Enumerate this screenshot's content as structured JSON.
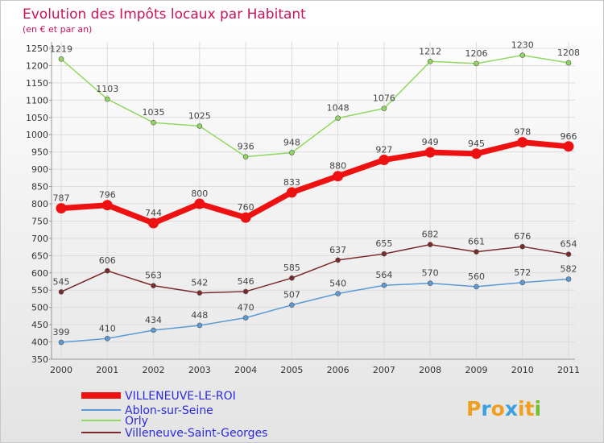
{
  "title": "Evolution des Impôts locaux par Habitant",
  "subtitle": "(en € et par an)",
  "logo": {
    "letters": [
      "P",
      "r",
      "o",
      "x",
      "i",
      "t",
      "i"
    ],
    "colors": [
      "#f0a020",
      "#3aa0e0",
      "#f0a020",
      "#3aa0e0",
      "#f0a020",
      "#f0a020",
      "#70c030"
    ]
  },
  "colors": {
    "title": "#c8145a",
    "grid": "#dcdcdc",
    "legend_text": "#2a2ae0"
  },
  "chart_data": {
    "type": "line",
    "title": "Evolution des Impôts locaux par Habitant",
    "subtitle": "(en € et par an)",
    "xlabel": "",
    "ylabel": "",
    "x": [
      "2000",
      "2001",
      "2002",
      "2003",
      "2004",
      "2005",
      "2006",
      "2007",
      "2008",
      "2009",
      "2010",
      "2011"
    ],
    "ylim": [
      350,
      1250
    ],
    "yticks": [
      350,
      400,
      450,
      500,
      550,
      600,
      650,
      700,
      750,
      800,
      850,
      900,
      950,
      1000,
      1050,
      1100,
      1150,
      1200,
      1250
    ],
    "grid": true,
    "legend_position": "bottom-left",
    "series": [
      {
        "name": "VILLENEUVE-LE-ROI",
        "color": "#ee1111",
        "values": [
          787,
          796,
          744,
          800,
          760,
          833,
          880,
          927,
          949,
          945,
          978,
          966
        ],
        "highlight": true
      },
      {
        "name": "Ablon-sur-Seine",
        "color": "#5b9bd5",
        "values": [
          399,
          410,
          434,
          448,
          470,
          507,
          540,
          564,
          570,
          560,
          572,
          582
        ]
      },
      {
        "name": "Orly",
        "color": "#90d860",
        "values": [
          1219,
          1103,
          1035,
          1025,
          936,
          948,
          1048,
          1076,
          1212,
          1206,
          1230,
          1208
        ]
      },
      {
        "name": "Villeneuve-Saint-Georges",
        "color": "#7a2a2a",
        "values": [
          545,
          606,
          563,
          542,
          546,
          585,
          637,
          655,
          682,
          661,
          676,
          654
        ]
      }
    ]
  }
}
